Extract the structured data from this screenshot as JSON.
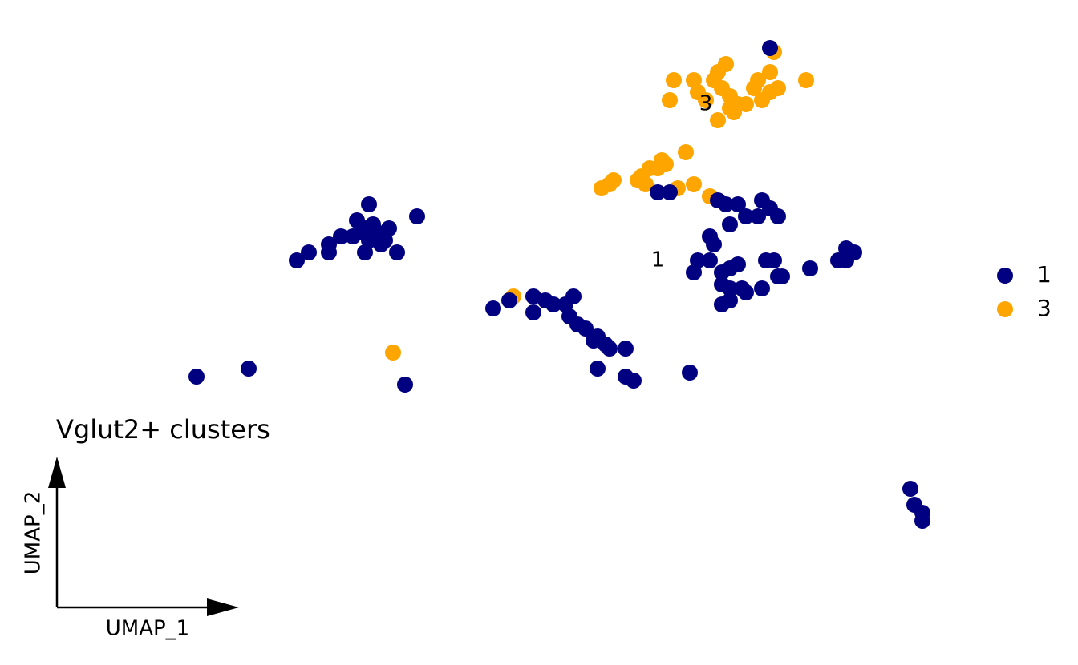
{
  "chart_data": {
    "type": "scatter",
    "title": "Vglut2+ clusters",
    "x_label": "UMAP_1",
    "y_label": "UMAP_2",
    "xlim": [
      -10.4,
      10.4
    ],
    "ylim": [
      -6.6,
      6.6
    ],
    "legend": "right",
    "series": [
      {
        "name": "3",
        "color": "#ffa500",
        "x": [
          3.6,
          3.5,
          4.1,
          4.2,
          4.4,
          4.6,
          4.7,
          4.9,
          4.8,
          5.0,
          5.2,
          5.4,
          5.1,
          4.7,
          5.6,
          5.8,
          6.0,
          6.1,
          6.0,
          6.2,
          6.9,
          5.7,
          5.0,
          1.8,
          2.0,
          2.1,
          2.7,
          2.8,
          3.0,
          3.3,
          3.4,
          3.2,
          3.9,
          3.7,
          4.1,
          4.5,
          2.9,
          -3.4,
          -0.4
        ],
        "values": [
          5.2,
          4.7,
          5.2,
          4.9,
          4.7,
          5.2,
          5.4,
          5.6,
          5.0,
          4.8,
          4.6,
          4.6,
          4.4,
          4.2,
          5.0,
          4.7,
          5.4,
          5.9,
          4.9,
          5.0,
          5.2,
          5.2,
          4.5,
          2.5,
          2.6,
          2.7,
          2.7,
          2.8,
          3.0,
          3.2,
          3.1,
          3.0,
          3.4,
          2.5,
          2.6,
          2.3,
          2.6,
          -1.6,
          -0.2
        ]
      },
      {
        "name": "1",
        "color": "#000080",
        "x": [
          -4.0,
          -4.3,
          -2.8,
          -4.1,
          -3.8,
          -3.5,
          -4.7,
          -4.4,
          -4.0,
          -3.7,
          -3.3,
          -4.1,
          -5.0,
          -5.5,
          -5.0,
          -5.8,
          -4.2,
          -3.9,
          -3.6,
          -8.3,
          -7.0,
          -3.1,
          -0.9,
          -0.5,
          0.1,
          0.1,
          0.4,
          0.6,
          0.9,
          1.1,
          1.0,
          1.2,
          1.4,
          1.7,
          1.6,
          1.9,
          2.0,
          2.4,
          1.7,
          2.4,
          2.6,
          4.0,
          3.2,
          3.5,
          4.7,
          4.9,
          5.2,
          5.8,
          5.4,
          5.7,
          6.2,
          6.0,
          5.0,
          4.5,
          4.6,
          4.2,
          4.1,
          4.5,
          5.0,
          5.2,
          5.9,
          6.1,
          4.8,
          4.8,
          5.0,
          5.3,
          5.8,
          5.4,
          6.2,
          6.3,
          7.0,
          4.8,
          5.0,
          7.7,
          7.9,
          8.1,
          7.9,
          6.0,
          9.5,
          9.6,
          9.8,
          9.8
        ],
        "values": [
          2.1,
          1.7,
          1.8,
          1.5,
          1.4,
          1.5,
          1.3,
          1.3,
          1.2,
          1.1,
          0.9,
          0.9,
          1.1,
          0.9,
          0.9,
          0.7,
          1.4,
          1.6,
          1.2,
          -2.2,
          -2.0,
          -2.4,
          -0.5,
          -0.3,
          -0.2,
          -0.6,
          -0.3,
          -0.4,
          -0.4,
          -0.2,
          -0.7,
          -0.9,
          -1.0,
          -1.2,
          -1.3,
          -1.4,
          -1.5,
          -1.5,
          -2.0,
          -2.2,
          -2.3,
          -2.1,
          2.4,
          2.4,
          2.2,
          2.1,
          2.1,
          2.2,
          1.8,
          1.8,
          1.8,
          2.0,
          1.6,
          1.3,
          1.1,
          0.7,
          0.4,
          0.7,
          0.5,
          0.6,
          0.7,
          0.7,
          0.4,
          0.1,
          0,
          0,
          0,
          -0.1,
          0.3,
          0.3,
          0.5,
          -0.4,
          -0.3,
          0.7,
          0.7,
          0.9,
          1.0,
          6.0,
          -5.0,
          -5.4,
          -5.6,
          -5.8
        ]
      }
    ]
  }
}
